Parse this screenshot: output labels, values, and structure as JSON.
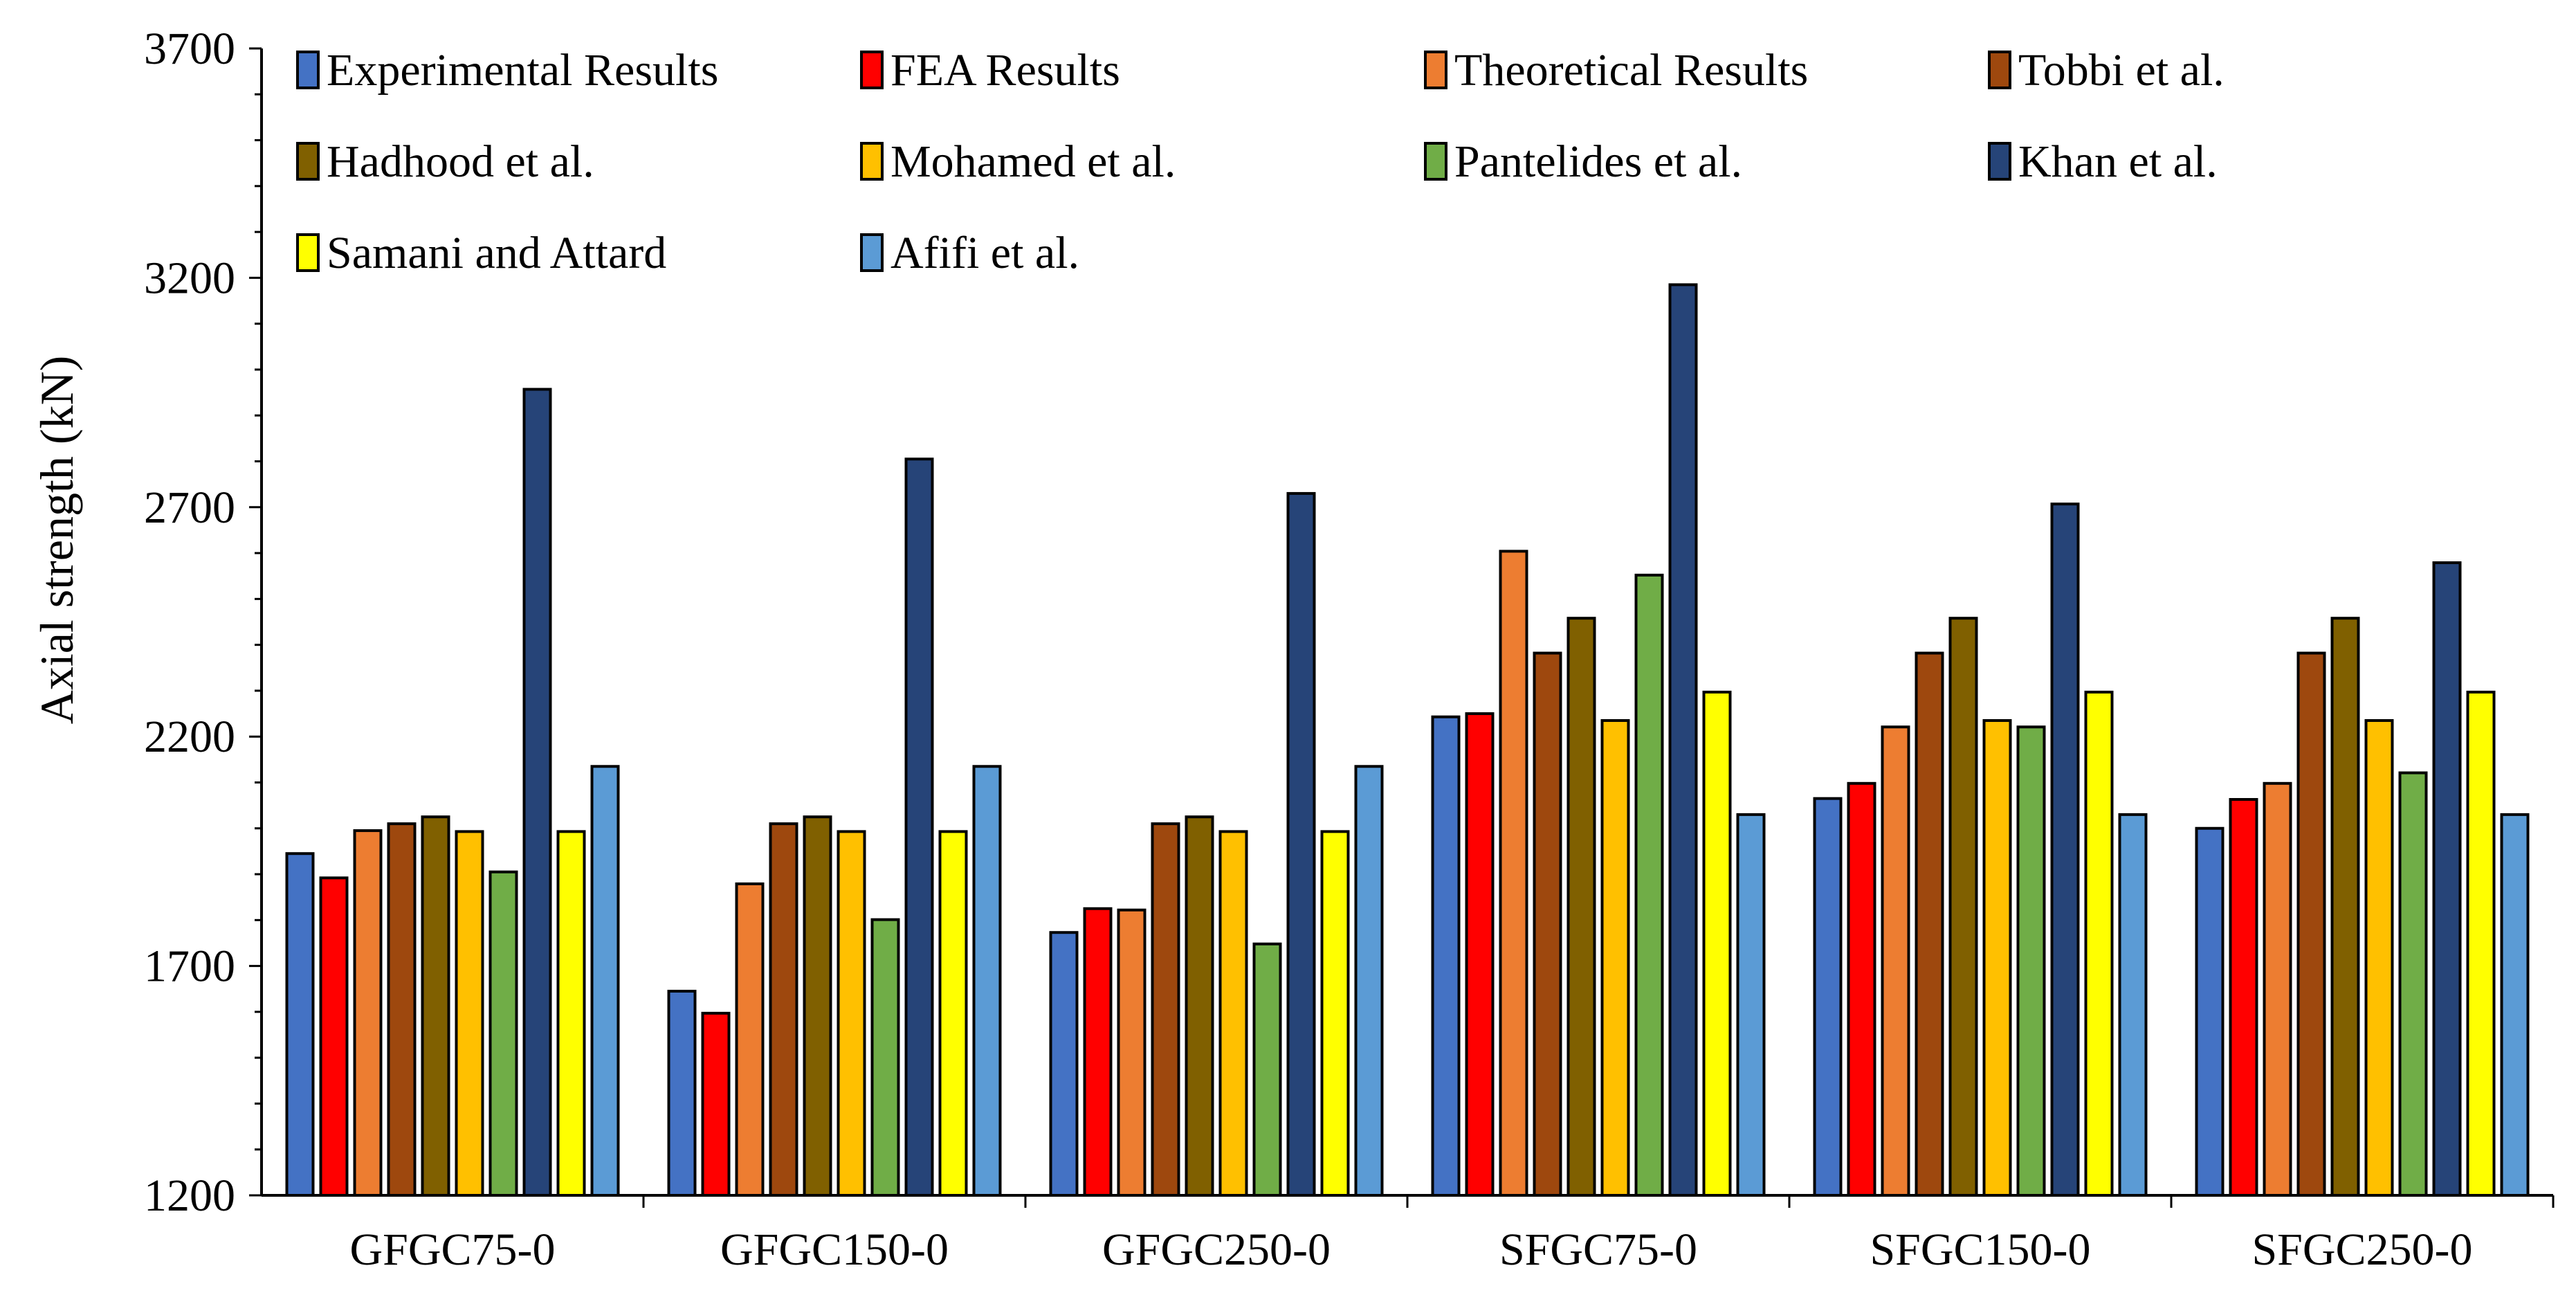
{
  "chart_data": {
    "type": "bar",
    "title": "",
    "xlabel": "",
    "ylabel": "Axial strength (kN)",
    "ylim": [
      1200,
      3700
    ],
    "yticks": [
      1200,
      1700,
      2200,
      2700,
      3200,
      3700
    ],
    "grid": false,
    "legend_position": "top",
    "categories": [
      "GFGC75-0",
      "GFGC150-0",
      "GFGC250-0",
      "SFGC75-0",
      "SFGC150-0",
      "SFGC250-0"
    ],
    "series": [
      {
        "name": "Experimental Results",
        "color": "#4472C4",
        "values": [
          1945,
          1645,
          1773,
          2243,
          2065,
          2000
        ]
      },
      {
        "name": "FEA Results",
        "color": "#FF0000",
        "values": [
          1892,
          1597,
          1825,
          2250,
          2098,
          2063
        ]
      },
      {
        "name": "Theoretical Results",
        "color": "#ED7D31",
        "values": [
          1995,
          1879,
          1822,
          2604,
          2221,
          2098
        ]
      },
      {
        "name": "Tobbi et al.",
        "color": "#9E480E",
        "values": [
          2010,
          2010,
          2010,
          2382,
          2382,
          2382
        ]
      },
      {
        "name": "Hadhood et al.",
        "color": "#806000",
        "values": [
          2025,
          2025,
          2025,
          2458,
          2458,
          2458
        ]
      },
      {
        "name": "Mohamed et al.",
        "color": "#FFC000",
        "values": [
          1993,
          1993,
          1993,
          2235,
          2235,
          2235
        ]
      },
      {
        "name": "Pantelides et al.",
        "color": "#70AD47",
        "values": [
          1905,
          1801,
          1748,
          2552,
          2221,
          2121
        ]
      },
      {
        "name": "Khan et al.",
        "color": "#264478",
        "values": [
          2957,
          2805,
          2730,
          3185,
          2707,
          2579
        ]
      },
      {
        "name": "Samani and Attard",
        "color": "#FFFF00",
        "values": [
          1993,
          1993,
          1993,
          2297,
          2297,
          2297
        ]
      },
      {
        "name": "Afifi et al.",
        "color": "#5B9BD5",
        "values": [
          2135,
          2135,
          2135,
          2030,
          2030,
          2030
        ]
      }
    ]
  }
}
